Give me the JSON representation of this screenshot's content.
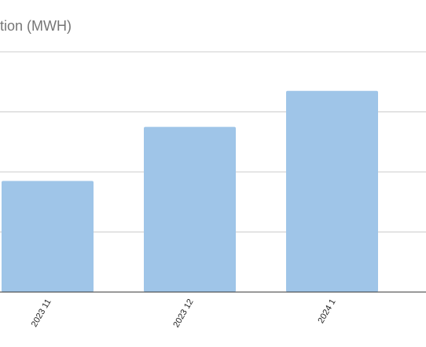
{
  "chart_data": {
    "type": "bar",
    "title": "tion (MWH)",
    "categories": [
      "2023 11",
      "2023 12",
      "2024 1"
    ],
    "values": [
      1.85,
      2.75,
      3.35
    ],
    "ylim": [
      0,
      4
    ],
    "grid": true,
    "colors": {
      "bar": "#9fc5e8",
      "grid": "#cccccc",
      "axis": "#333333",
      "title": "#757575"
    }
  }
}
